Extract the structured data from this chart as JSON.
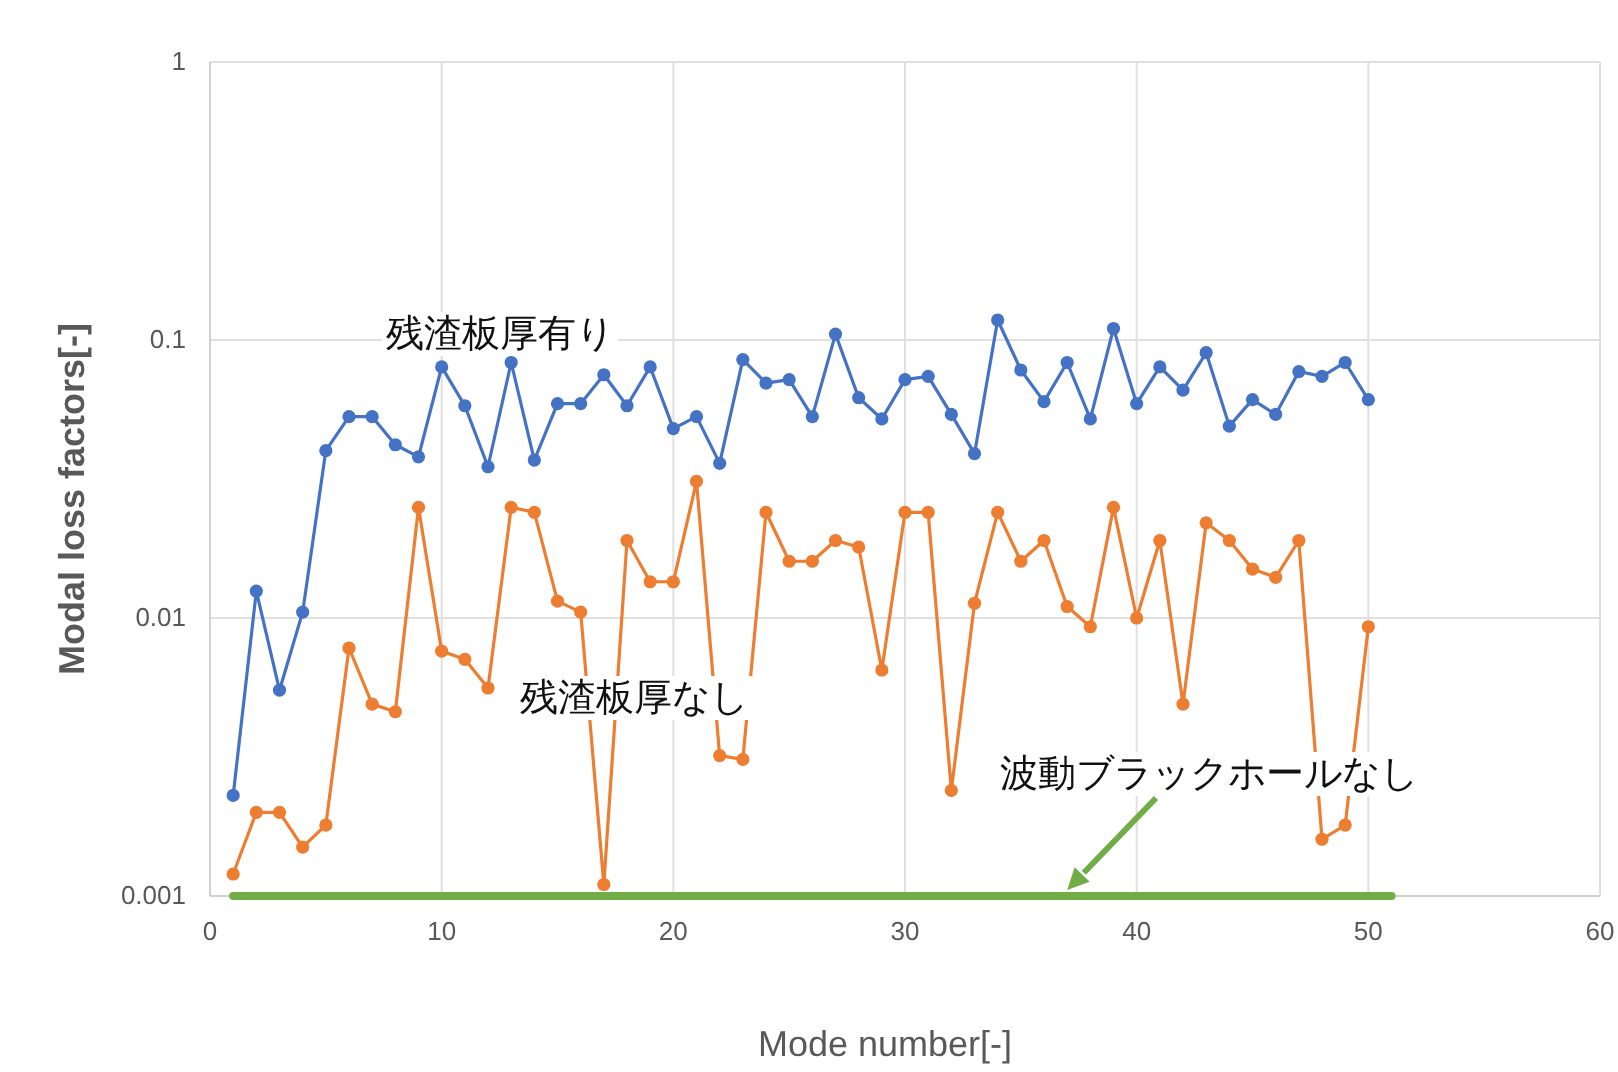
{
  "chart_data": {
    "type": "line",
    "xlabel": "Mode number[-]",
    "ylabel": "Modal loss factors[-]",
    "log": "y",
    "xlim": [
      0,
      60
    ],
    "xticks": [
      0,
      10,
      20,
      30,
      40,
      50,
      60
    ],
    "ylim": [
      0.001,
      1
    ],
    "yticks": [
      0.001,
      0.01,
      0.1,
      1
    ],
    "grid": true,
    "annotations": [
      {
        "text": "波動ブラックホールなし",
        "x": 37,
        "y": 0.001
      }
    ],
    "x": [
      1,
      2,
      3,
      4,
      5,
      6,
      7,
      8,
      9,
      10,
      11,
      12,
      13,
      14,
      15,
      16,
      17,
      18,
      19,
      20,
      21,
      22,
      23,
      24,
      25,
      26,
      27,
      28,
      29,
      30,
      31,
      32,
      33,
      34,
      35,
      36,
      37,
      38,
      39,
      40,
      41,
      42,
      43,
      44,
      45,
      46,
      47,
      48,
      49,
      50
    ],
    "series": [
      {
        "name": "残渣板厚有り",
        "color": "#4472c4",
        "marker": "circle",
        "values": [
          0.0023,
          0.0125,
          0.0055,
          0.0105,
          0.04,
          0.053,
          0.053,
          0.042,
          0.038,
          0.08,
          0.058,
          0.035,
          0.083,
          0.037,
          0.059,
          0.059,
          0.075,
          0.058,
          0.08,
          0.048,
          0.053,
          0.036,
          0.085,
          0.07,
          0.072,
          0.053,
          0.105,
          0.062,
          0.052,
          0.072,
          0.074,
          0.054,
          0.039,
          0.118,
          0.078,
          0.06,
          0.083,
          0.052,
          0.11,
          0.059,
          0.08,
          0.066,
          0.09,
          0.049,
          0.061,
          0.054,
          0.077,
          0.074,
          0.083,
          0.061
        ]
      },
      {
        "name": "残渣板厚なし",
        "color": "#ed7d31",
        "marker": "circle",
        "values": [
          0.0012,
          0.002,
          0.002,
          0.0015,
          0.0018,
          0.0078,
          0.0049,
          0.0046,
          0.025,
          0.0076,
          0.0071,
          0.0056,
          0.025,
          0.024,
          0.0115,
          0.0105,
          0.0011,
          0.019,
          0.0135,
          0.0135,
          0.031,
          0.0032,
          0.0031,
          0.024,
          0.016,
          0.016,
          0.019,
          0.018,
          0.0065,
          0.024,
          0.024,
          0.0024,
          0.0113,
          0.024,
          0.016,
          0.019,
          0.011,
          0.0093,
          0.025,
          0.01,
          0.019,
          0.0049,
          0.022,
          0.019,
          0.015,
          0.014,
          0.019,
          0.0016,
          0.0018,
          0.0093
        ]
      },
      {
        "color": "#70ad47",
        "marker": "none",
        "x": [
          1,
          51
        ],
        "values": [
          0.001,
          0.001
        ]
      }
    ]
  }
}
